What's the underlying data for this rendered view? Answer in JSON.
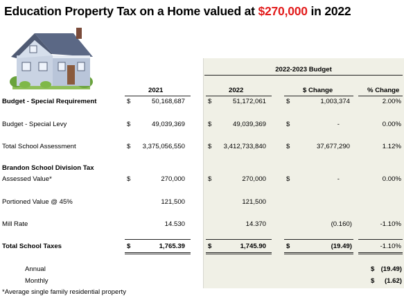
{
  "title": {
    "prefix": "Education Property Tax on a Home valued at ",
    "amount": "$270,000",
    "suffix": " in 2022"
  },
  "budget_header": "2022-2023 Budget",
  "columns": {
    "y2021": "2021",
    "y2022": "2022",
    "change": "$ Change",
    "pct": "% Change"
  },
  "rows": {
    "special_requirement": {
      "label": "Budget - Special Requirement",
      "s1": "$",
      "v2021": "50,168,687",
      "s2": "$",
      "v2022": "51,172,061",
      "s3": "$",
      "change": "1,003,374",
      "pct": "2.00%"
    },
    "special_levy": {
      "label": "Budget - Special Levy",
      "s1": "$",
      "v2021": "49,039,369",
      "s2": "$",
      "v2022": "49,039,369",
      "s3": "$",
      "change": "-",
      "pct": "0.00%"
    },
    "school_assessment": {
      "label": "Total School Assessment",
      "s1": "$",
      "v2021": "3,375,056,550",
      "s2": "$",
      "v2022": "3,412,733,840",
      "s3": "$",
      "change": "37,677,290",
      "pct": "1.12%"
    },
    "division_heading": {
      "label": "Brandon School Division Tax"
    },
    "assessed_value": {
      "label": "Assessed Value*",
      "s1": "$",
      "v2021": "270,000",
      "s2": "$",
      "v2022": "270,000",
      "s3": "$",
      "change": "-",
      "pct": "0.00%"
    },
    "portioned_value": {
      "label": "Portioned Value @ 45%",
      "v2021": "121,500",
      "v2022": "121,500"
    },
    "mill_rate": {
      "label": "Mill Rate",
      "v2021": "14.530",
      "v2022": "14.370",
      "change": "(0.160)",
      "pct": "-1.10%"
    },
    "total_taxes": {
      "label": "Total School Taxes",
      "s1": "$",
      "v2021": "1,765.39",
      "s2": "$",
      "v2022": "1,745.90",
      "s3": "$",
      "change": "(19.49)",
      "pct": "-1.10%"
    }
  },
  "annual": {
    "label": "Annual",
    "sign": "$",
    "value": "(19.49)"
  },
  "monthly": {
    "label": "Monthly",
    "sign": "$",
    "value": "(1.62)"
  },
  "footnote": "*Average single family residential property"
}
